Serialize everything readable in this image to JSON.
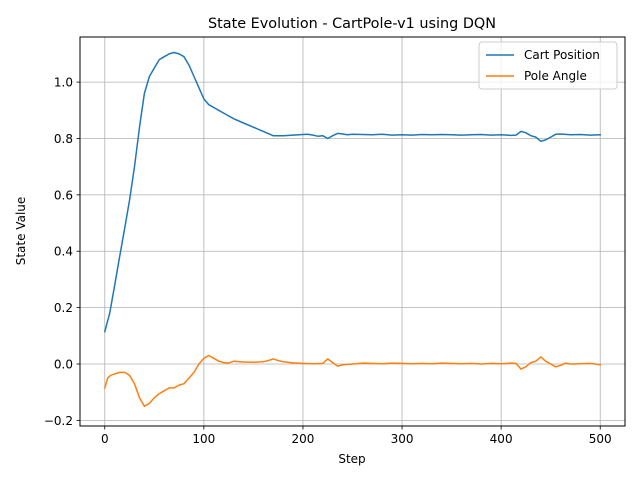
{
  "chart_data": {
    "type": "line",
    "title": "State Evolution - CartPole-v1 using DQN",
    "xlabel": "Step",
    "ylabel": "State Value",
    "xlim": [
      -25,
      525
    ],
    "ylim": [
      -0.22,
      1.16
    ],
    "xticks": [
      0,
      100,
      200,
      300,
      400,
      500
    ],
    "yticks": [
      -0.2,
      0.0,
      0.2,
      0.4,
      0.6,
      0.8,
      1.0
    ],
    "xtick_labels": [
      "0",
      "100",
      "200",
      "300",
      "400",
      "500"
    ],
    "ytick_labels": [
      "−0.2",
      "0.0",
      "0.2",
      "0.4",
      "0.6",
      "0.8",
      "1.0"
    ],
    "grid": true,
    "legend_position": "top-right",
    "series": [
      {
        "name": "Cart Position",
        "color": "#1f77b4",
        "x": [
          0,
          5,
          10,
          15,
          20,
          25,
          30,
          35,
          40,
          45,
          50,
          55,
          60,
          65,
          70,
          75,
          80,
          85,
          90,
          95,
          100,
          105,
          110,
          115,
          120,
          125,
          130,
          140,
          150,
          160,
          170,
          180,
          190,
          200,
          205,
          210,
          215,
          220,
          225,
          230,
          235,
          240,
          245,
          250,
          260,
          270,
          280,
          290,
          300,
          310,
          320,
          330,
          340,
          350,
          360,
          370,
          380,
          390,
          400,
          410,
          415,
          420,
          425,
          430,
          435,
          440,
          445,
          450,
          455,
          460,
          470,
          480,
          490,
          500
        ],
        "y": [
          0.115,
          0.18,
          0.28,
          0.38,
          0.48,
          0.58,
          0.7,
          0.84,
          0.96,
          1.02,
          1.05,
          1.08,
          1.09,
          1.1,
          1.105,
          1.1,
          1.09,
          1.06,
          1.02,
          0.98,
          0.94,
          0.92,
          0.91,
          0.9,
          0.89,
          0.88,
          0.87,
          0.855,
          0.84,
          0.825,
          0.81,
          0.81,
          0.812,
          0.814,
          0.815,
          0.812,
          0.808,
          0.81,
          0.8,
          0.81,
          0.818,
          0.816,
          0.813,
          0.815,
          0.814,
          0.813,
          0.815,
          0.812,
          0.813,
          0.812,
          0.814,
          0.813,
          0.814,
          0.813,
          0.812,
          0.813,
          0.814,
          0.812,
          0.813,
          0.811,
          0.812,
          0.825,
          0.82,
          0.81,
          0.805,
          0.79,
          0.795,
          0.805,
          0.815,
          0.816,
          0.813,
          0.814,
          0.812,
          0.813
        ]
      },
      {
        "name": "Pole Angle",
        "color": "#ff7f0e",
        "x": [
          0,
          3,
          6,
          10,
          15,
          20,
          25,
          30,
          35,
          40,
          45,
          50,
          55,
          60,
          65,
          70,
          75,
          80,
          85,
          90,
          95,
          100,
          105,
          110,
          115,
          120,
          125,
          130,
          140,
          150,
          160,
          165,
          170,
          175,
          180,
          190,
          200,
          210,
          220,
          225,
          230,
          235,
          240,
          250,
          260,
          270,
          280,
          290,
          300,
          310,
          320,
          330,
          340,
          350,
          360,
          370,
          380,
          390,
          400,
          410,
          415,
          420,
          425,
          430,
          435,
          440,
          445,
          450,
          455,
          460,
          465,
          470,
          480,
          490,
          500
        ],
        "y": [
          -0.085,
          -0.05,
          -0.04,
          -0.035,
          -0.03,
          -0.03,
          -0.04,
          -0.07,
          -0.12,
          -0.15,
          -0.14,
          -0.12,
          -0.105,
          -0.095,
          -0.085,
          -0.085,
          -0.075,
          -0.07,
          -0.05,
          -0.03,
          0.0,
          0.02,
          0.03,
          0.02,
          0.01,
          0.005,
          0.003,
          0.01,
          0.007,
          0.006,
          0.008,
          0.012,
          0.018,
          0.012,
          0.008,
          0.004,
          0.002,
          0.001,
          0.002,
          0.018,
          0.005,
          -0.008,
          -0.003,
          0.0,
          0.003,
          0.002,
          0.001,
          0.003,
          0.002,
          0.001,
          0.002,
          0.001,
          0.003,
          0.002,
          0.001,
          0.002,
          0.0,
          0.002,
          0.001,
          0.003,
          0.002,
          -0.018,
          -0.01,
          0.005,
          0.01,
          0.025,
          0.01,
          0.0,
          -0.01,
          -0.005,
          0.003,
          0.0,
          0.001,
          0.002,
          -0.003
        ]
      }
    ]
  }
}
